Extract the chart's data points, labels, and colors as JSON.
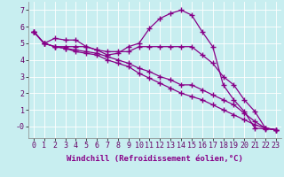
{
  "bg_color": "#c8eef0",
  "line_color": "#880088",
  "marker": "+",
  "markersize": 4,
  "linewidth": 0.9,
  "xlabel": "Windchill (Refroidissement éolien,°C)",
  "xlabel_fontsize": 6.5,
  "tick_fontsize": 6.0,
  "xlim": [
    -0.5,
    23.5
  ],
  "ylim": [
    -0.7,
    7.5
  ],
  "xticks": [
    0,
    1,
    2,
    3,
    4,
    5,
    6,
    7,
    8,
    9,
    10,
    11,
    12,
    13,
    14,
    15,
    16,
    17,
    18,
    19,
    20,
    21,
    22,
    23
  ],
  "yticks": [
    0,
    1,
    2,
    3,
    4,
    5,
    6,
    7
  ],
  "ytick_labels": [
    "-0",
    "1",
    "2",
    "3",
    "4",
    "5",
    "6",
    "7"
  ],
  "series": [
    [
      5.7,
      5.0,
      5.3,
      5.2,
      5.2,
      4.8,
      4.6,
      4.3,
      4.4,
      4.8,
      5.0,
      5.9,
      6.5,
      6.8,
      7.0,
      6.7,
      5.7,
      4.8,
      2.5,
      1.6,
      0.9,
      -0.1,
      -0.15,
      -0.2
    ],
    [
      5.7,
      5.0,
      4.8,
      4.8,
      4.8,
      4.8,
      4.6,
      4.5,
      4.5,
      4.5,
      4.8,
      4.8,
      4.8,
      4.8,
      4.8,
      4.8,
      4.3,
      3.8,
      3.0,
      2.5,
      1.6,
      0.9,
      -0.1,
      -0.2
    ],
    [
      5.7,
      5.0,
      4.8,
      4.7,
      4.6,
      4.5,
      4.4,
      4.2,
      4.0,
      3.8,
      3.5,
      3.3,
      3.0,
      2.8,
      2.5,
      2.5,
      2.2,
      1.9,
      1.6,
      1.3,
      0.8,
      0.3,
      -0.1,
      -0.2
    ],
    [
      5.7,
      5.0,
      4.8,
      4.7,
      4.5,
      4.4,
      4.3,
      4.0,
      3.8,
      3.6,
      3.2,
      2.9,
      2.6,
      2.3,
      2.0,
      1.8,
      1.6,
      1.3,
      1.0,
      0.7,
      0.4,
      0.1,
      -0.1,
      -0.2
    ]
  ]
}
